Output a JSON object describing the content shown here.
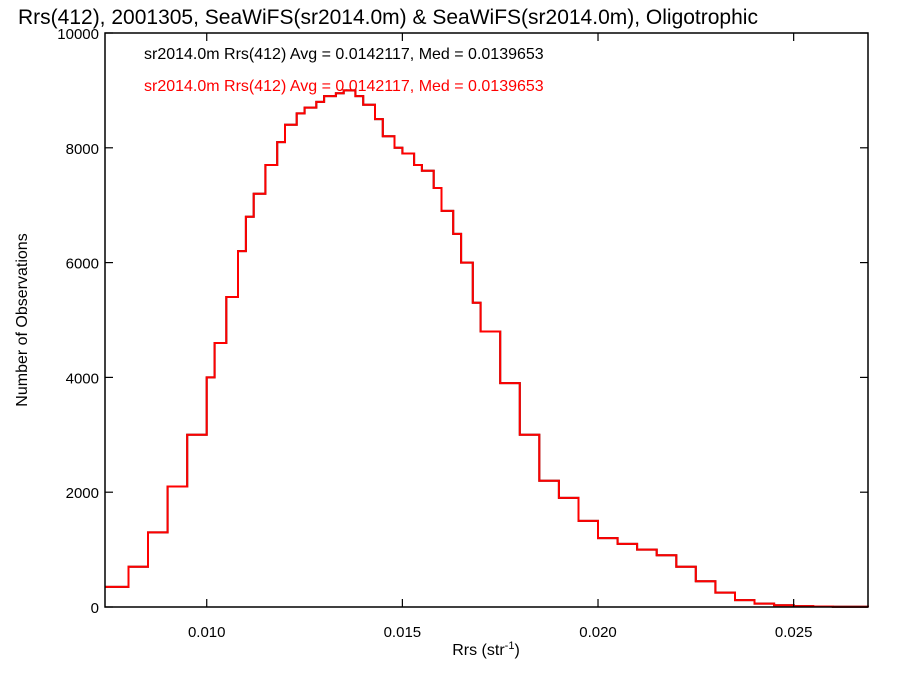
{
  "chart_data": {
    "type": "line",
    "title": "Rrs(412), 2001305, SeaWiFS(sr2014.0m) & SeaWiFS(sr2014.0m), Oligotrophic",
    "xlabel_main": "Rrs (str",
    "xlabel_sup": "-1",
    "xlabel_close": ")",
    "ylabel": "Number of Observations",
    "xlim": [
      0.0074,
      0.0269
    ],
    "ylim": [
      0,
      10000
    ],
    "x_ticks": [
      {
        "v": 0.01,
        "label": "0.010"
      },
      {
        "v": 0.015,
        "label": "0.015"
      },
      {
        "v": 0.02,
        "label": "0.020"
      },
      {
        "v": 0.025,
        "label": "0.025"
      }
    ],
    "y_ticks": [
      {
        "v": 0,
        "label": "0"
      },
      {
        "v": 2000,
        "label": "2000"
      },
      {
        "v": 4000,
        "label": "4000"
      },
      {
        "v": 6000,
        "label": "6000"
      },
      {
        "v": 8000,
        "label": "8000"
      },
      {
        "v": 10000,
        "label": "10000"
      }
    ],
    "series": [
      {
        "legend": "sr2014.0m Rrs(412) Avg = 0.0142117, Med = 0.0139653",
        "color": "#000000",
        "x": [
          0.0074,
          0.008,
          0.0085,
          0.009,
          0.0095,
          0.01,
          0.0102,
          0.0105,
          0.0108,
          0.011,
          0.0112,
          0.0115,
          0.0118,
          0.012,
          0.0123,
          0.0125,
          0.0128,
          0.013,
          0.0133,
          0.0135,
          0.0138,
          0.014,
          0.0143,
          0.0145,
          0.0148,
          0.015,
          0.0153,
          0.0155,
          0.0158,
          0.016,
          0.0163,
          0.0165,
          0.0168,
          0.017,
          0.0175,
          0.018,
          0.0185,
          0.019,
          0.0195,
          0.02,
          0.0205,
          0.021,
          0.0215,
          0.022,
          0.0225,
          0.023,
          0.0235,
          0.024,
          0.0245,
          0.025,
          0.0255,
          0.026,
          0.0269
        ],
        "y": [
          350,
          700,
          1300,
          2100,
          3000,
          4000,
          4600,
          5400,
          6200,
          6800,
          7200,
          7700,
          8100,
          8400,
          8600,
          8700,
          8800,
          8900,
          8950,
          9000,
          8900,
          8750,
          8500,
          8200,
          8000,
          7900,
          7700,
          7600,
          7300,
          6900,
          6500,
          6000,
          5300,
          4800,
          3900,
          3000,
          2200,
          1900,
          1500,
          1200,
          1100,
          1000,
          900,
          700,
          450,
          250,
          120,
          60,
          30,
          15,
          8,
          5,
          0
        ]
      },
      {
        "legend": "sr2014.0m Rrs(412) Avg = 0.0142117, Med = 0.0139653",
        "color": "#ff0000",
        "x": [
          0.0074,
          0.008,
          0.0085,
          0.009,
          0.0095,
          0.01,
          0.0102,
          0.0105,
          0.0108,
          0.011,
          0.0112,
          0.0115,
          0.0118,
          0.012,
          0.0123,
          0.0125,
          0.0128,
          0.013,
          0.0133,
          0.0135,
          0.0138,
          0.014,
          0.0143,
          0.0145,
          0.0148,
          0.015,
          0.0153,
          0.0155,
          0.0158,
          0.016,
          0.0163,
          0.0165,
          0.0168,
          0.017,
          0.0175,
          0.018,
          0.0185,
          0.019,
          0.0195,
          0.02,
          0.0205,
          0.021,
          0.0215,
          0.022,
          0.0225,
          0.023,
          0.0235,
          0.024,
          0.0245,
          0.025,
          0.0255,
          0.026,
          0.0269
        ],
        "y": [
          350,
          700,
          1300,
          2100,
          3000,
          4000,
          4600,
          5400,
          6200,
          6800,
          7200,
          7700,
          8100,
          8400,
          8600,
          8700,
          8800,
          8900,
          8950,
          9000,
          8900,
          8750,
          8500,
          8200,
          8000,
          7900,
          7700,
          7600,
          7300,
          6900,
          6500,
          6000,
          5300,
          4800,
          3900,
          3000,
          2200,
          1900,
          1500,
          1200,
          1100,
          1000,
          900,
          700,
          450,
          250,
          120,
          60,
          30,
          15,
          8,
          5,
          0
        ]
      }
    ],
    "histogram_style": "step",
    "grid": false,
    "legend_placement": "top-left inside plot"
  }
}
